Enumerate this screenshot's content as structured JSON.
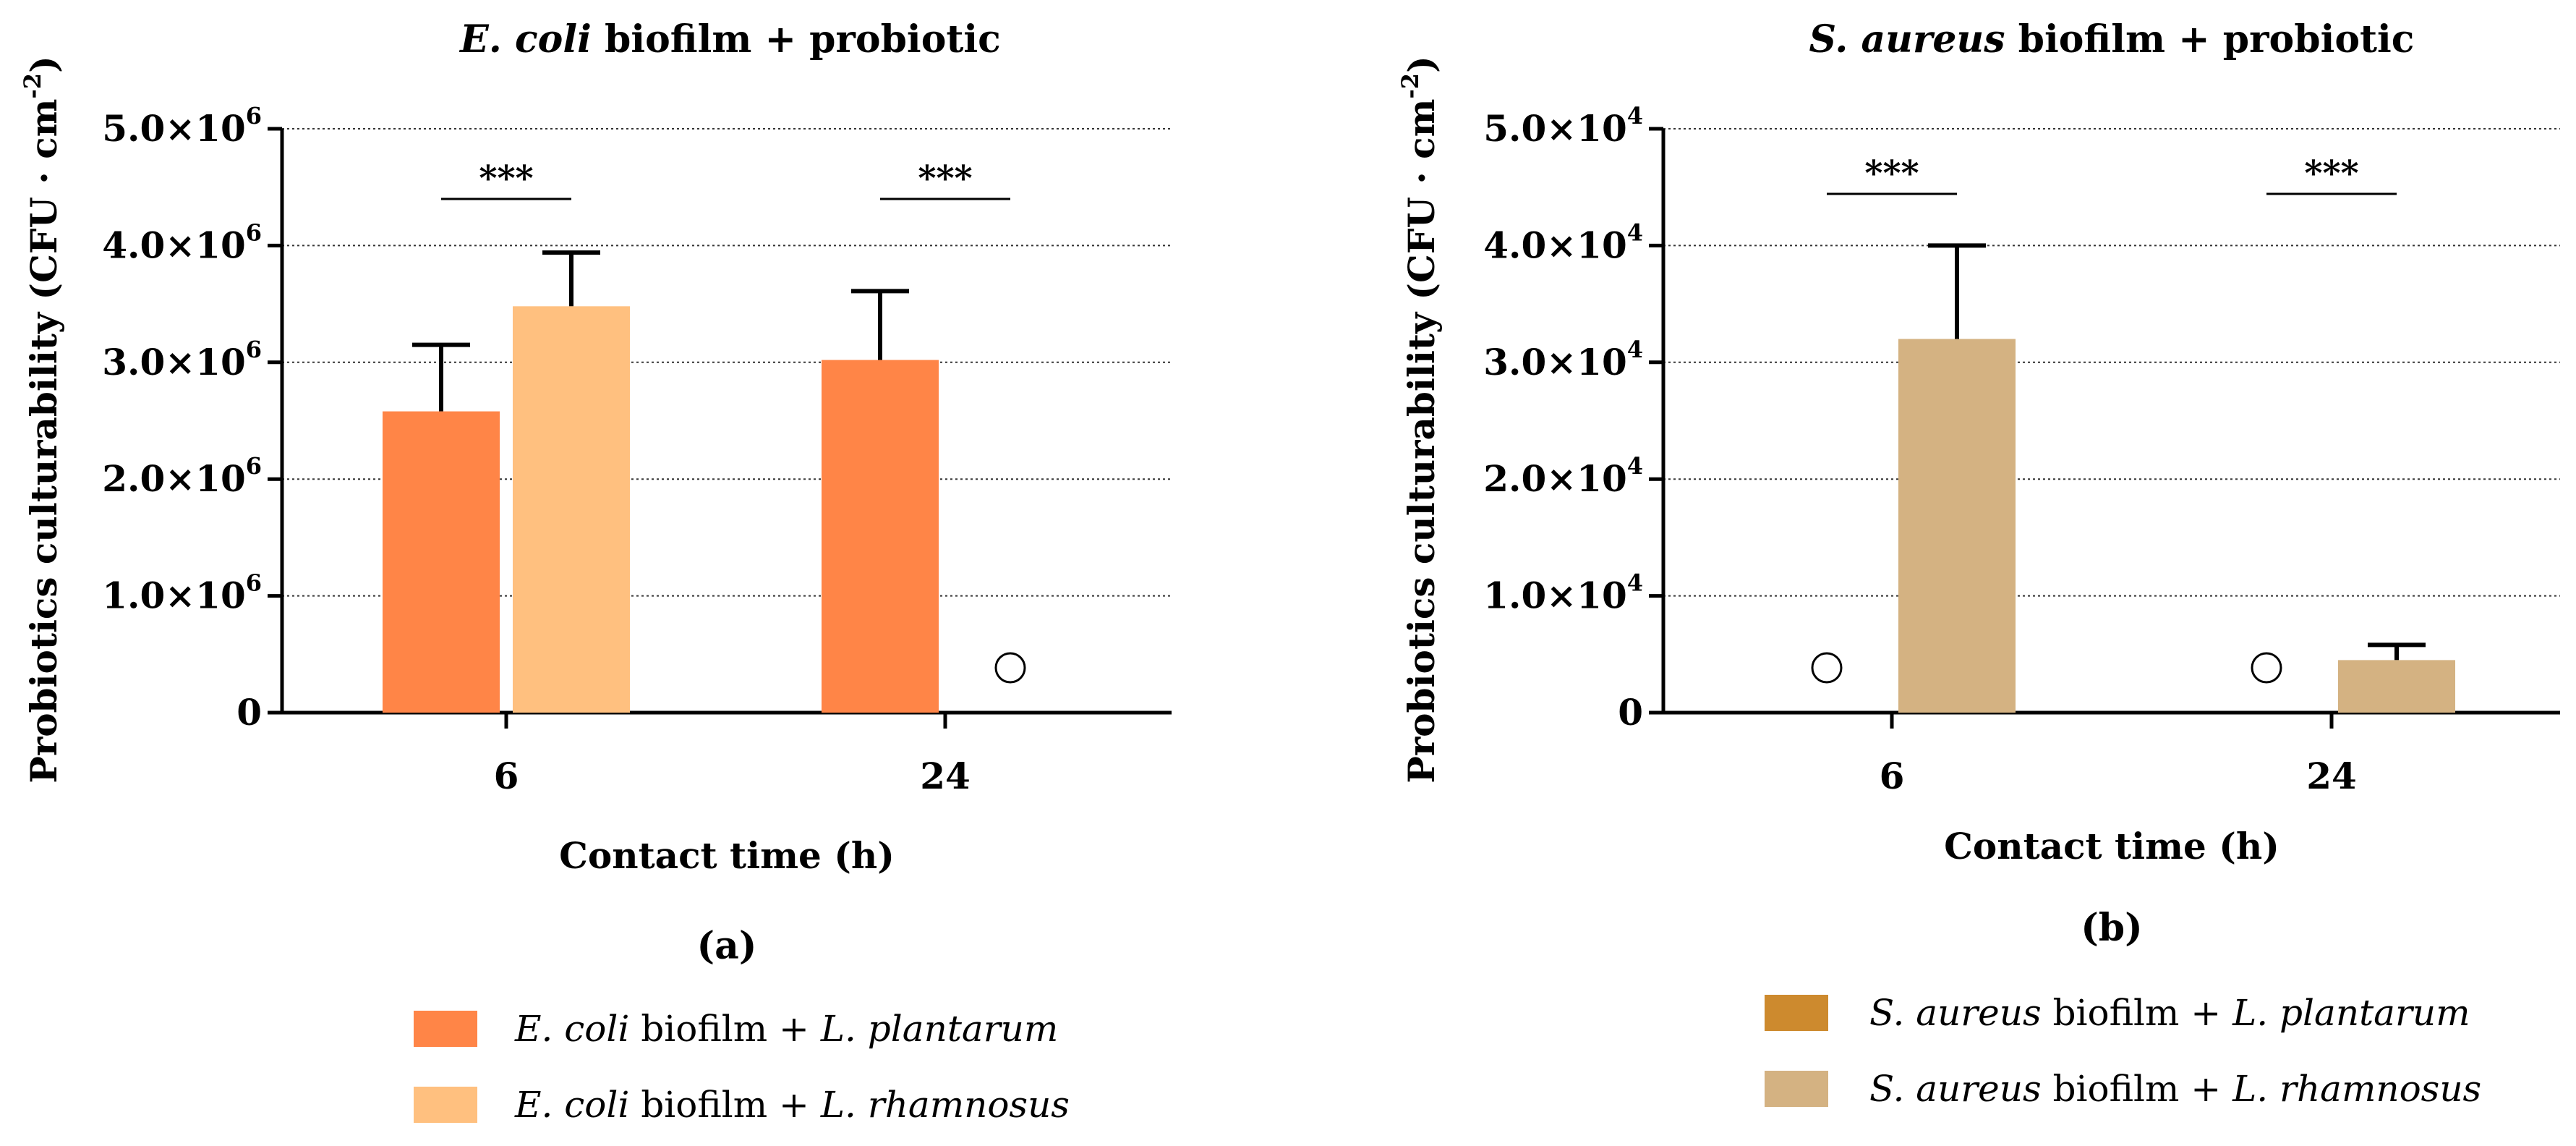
{
  "chart_data": [
    {
      "type": "bar",
      "panel_label": "(a)",
      "title_italic": "E. coli",
      "title_rest": " biofilm + probiotic",
      "xlabel": "Contact time (h)",
      "ylabel": "Probiotics culturability (CFU · cm",
      "ylabel_exp": "-2",
      "ylabel_close": ")",
      "ylim": [
        0,
        5000000
      ],
      "yticks": [
        {
          "value": 0,
          "mantissa": "0",
          "exp": ""
        },
        {
          "value": 1000000,
          "mantissa": "1.0×10",
          "exp": "6"
        },
        {
          "value": 2000000,
          "mantissa": "2.0×10",
          "exp": "6"
        },
        {
          "value": 3000000,
          "mantissa": "3.0×10",
          "exp": "6"
        },
        {
          "value": 4000000,
          "mantissa": "4.0×10",
          "exp": "6"
        },
        {
          "value": 5000000,
          "mantissa": "5.0×10",
          "exp": "6"
        }
      ],
      "grid": true,
      "categories": [
        "6",
        "24"
      ],
      "series": [
        {
          "name": "E. coli biofilm + L. plantarum",
          "color": "#FF8547",
          "values": [
            2580000,
            3020000
          ],
          "errors": [
            570000,
            590000
          ]
        },
        {
          "name": "E. coli biofilm + L. rhamnosus",
          "color": "#FFC07F",
          "values": [
            3480000,
            0
          ],
          "errors": [
            460000,
            0
          ]
        }
      ],
      "no_growth_markers": [
        {
          "category": 1,
          "series": 1
        }
      ],
      "significance": [
        {
          "category": 0,
          "label": "***"
        },
        {
          "category": 1,
          "label": "***"
        }
      ],
      "legend": [
        {
          "color": "#FF8547",
          "italic1": "E. coli",
          "plain1": " biofilm + ",
          "italic2": "L. plantarum"
        },
        {
          "color": "#FFC07F",
          "italic1": "E. coli",
          "plain1": " biofilm + ",
          "italic2": "L. rhamnosus"
        }
      ]
    },
    {
      "type": "bar",
      "panel_label": "(b)",
      "title_italic": "S. aureus",
      "title_rest": " biofilm + probiotic",
      "xlabel": "Contact time (h)",
      "ylabel": "Probiotics culturability (CFU · cm",
      "ylabel_exp": "-2",
      "ylabel_close": ")",
      "ylim": [
        0,
        50000
      ],
      "yticks": [
        {
          "value": 0,
          "mantissa": "0",
          "exp": ""
        },
        {
          "value": 10000,
          "mantissa": "1.0×10",
          "exp": "4"
        },
        {
          "value": 20000,
          "mantissa": "2.0×10",
          "exp": "4"
        },
        {
          "value": 30000,
          "mantissa": "3.0×10",
          "exp": "4"
        },
        {
          "value": 40000,
          "mantissa": "4.0×10",
          "exp": "4"
        },
        {
          "value": 50000,
          "mantissa": "5.0×10",
          "exp": "4"
        }
      ],
      "grid": true,
      "categories": [
        "6",
        "24"
      ],
      "series": [
        {
          "name": "S. aureus biofilm + L. plantarum",
          "color": "#CD8A2E",
          "values": [
            0,
            0
          ],
          "errors": [
            0,
            0
          ]
        },
        {
          "name": "S. aureus biofilm + L. rhamnosus",
          "color": "#D4B282",
          "values": [
            32000,
            4500
          ],
          "errors": [
            8000,
            1300
          ]
        }
      ],
      "no_growth_markers": [
        {
          "category": 0,
          "series": 0
        },
        {
          "category": 1,
          "series": 0
        }
      ],
      "significance": [
        {
          "category": 0,
          "label": "***"
        },
        {
          "category": 1,
          "label": "***"
        }
      ],
      "legend": [
        {
          "color": "#CD8A2E",
          "italic1": "S. aureus",
          "plain1": " biofilm + ",
          "italic2": "L. plantarum"
        },
        {
          "color": "#D4B282",
          "italic1": "S. aureus",
          "plain1": " biofilm + ",
          "italic2": "L. rhamnosus"
        }
      ]
    }
  ]
}
